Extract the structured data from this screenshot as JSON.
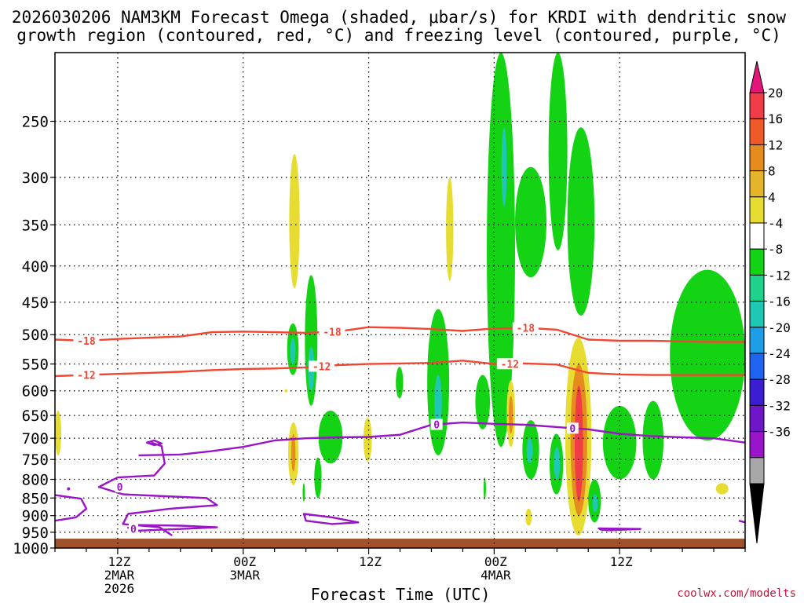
{
  "chart_data": {
    "type": "heatmap",
    "title_line1": "2026030206 NAM3KM Forecast Omega (shaded, μbar/s) for KRDI with dendritic snow",
    "title_line2": "growth region (contoured, red, °C) and freezing level (contoured, purple, °C)",
    "xlabel": "Forecast Time (UTC)",
    "credit": "coolwx.com/modelts",
    "x_unit": "hours from 2026-03-02 06Z",
    "xlim": [
      0,
      66
    ],
    "x_ticks": [
      {
        "x": 6,
        "label": "12Z",
        "label2": "2MAR",
        "label3": "2026"
      },
      {
        "x": 18,
        "label": "00Z",
        "label2": "3MAR",
        "label3": ""
      },
      {
        "x": 30,
        "label": "12Z",
        "label2": "",
        "label3": ""
      },
      {
        "x": 42,
        "label": "00Z",
        "label2": "4MAR",
        "label3": ""
      },
      {
        "x": 54,
        "label": "12Z",
        "label2": "",
        "label3": ""
      }
    ],
    "y_unit": "hPa",
    "ylim": [
      1000,
      200
    ],
    "y_ticks": [
      250,
      300,
      350,
      400,
      450,
      500,
      550,
      600,
      650,
      700,
      750,
      800,
      850,
      900,
      950,
      1000
    ],
    "y_grid": [
      250,
      300,
      350,
      400,
      450,
      500,
      550,
      600,
      650,
      700,
      750,
      800,
      850,
      900,
      950
    ],
    "colorbar": {
      "levels": [
        -36,
        -32,
        -28,
        -24,
        -20,
        -16,
        -12,
        -8,
        -4,
        4,
        8,
        12,
        16,
        20
      ],
      "colors": [
        "#a8a8a8",
        "#9a14c8",
        "#6e16c8",
        "#3c1ed2",
        "#1e64f0",
        "#1e9ee6",
        "#1ec8b4",
        "#1ed28c",
        "#14d214",
        "#ffffff",
        "#e6dc32",
        "#e6b428",
        "#e68c1e",
        "#f05a28",
        "#f03c46",
        "#e6147a"
      ],
      "under_color": "#000000",
      "over_color": "#e6147a"
    },
    "terrain": {
      "pressure": 970,
      "color": "#a0522d"
    },
    "omega_areas": [
      {
        "value": 4,
        "x_start": 0,
        "x_end": 0.6,
        "p_top": 640,
        "p_bottom": 740
      },
      {
        "value": 4,
        "x_start": 22.4,
        "x_end": 23.4,
        "p_top": 278,
        "p_bottom": 430
      },
      {
        "value": -4,
        "x_start": 22.2,
        "x_end": 23.3,
        "p_top": 482,
        "p_bottom": 570
      },
      {
        "value": -12,
        "x_start": 22.5,
        "x_end": 23.0,
        "p_top": 505,
        "p_bottom": 550
      },
      {
        "value": 4,
        "x_start": 22.3,
        "x_end": 23.3,
        "p_top": 665,
        "p_bottom": 815
      },
      {
        "value": 12,
        "x_start": 22.6,
        "x_end": 23.0,
        "p_top": 690,
        "p_bottom": 780
      },
      {
        "value": -4,
        "x_start": 23.9,
        "x_end": 25.1,
        "p_top": 412,
        "p_bottom": 630
      },
      {
        "value": -12,
        "x_start": 24.2,
        "x_end": 24.8,
        "p_top": 520,
        "p_bottom": 600
      },
      {
        "value": -4,
        "x_start": 23.7,
        "x_end": 23.9,
        "p_top": 810,
        "p_bottom": 860
      },
      {
        "value": -4,
        "x_start": 25.2,
        "x_end": 27.5,
        "p_top": 640,
        "p_bottom": 760
      },
      {
        "value": -4,
        "x_start": 24.8,
        "x_end": 25.5,
        "p_top": 745,
        "p_bottom": 850
      },
      {
        "value": 4,
        "x_start": 29.5,
        "x_end": 30.3,
        "p_top": 655,
        "p_bottom": 755
      },
      {
        "value": -4,
        "x_start": 32.6,
        "x_end": 33.3,
        "p_top": 555,
        "p_bottom": 615
      },
      {
        "value": 4,
        "x_start": 37.4,
        "x_end": 38.1,
        "p_top": 300,
        "p_bottom": 420
      },
      {
        "value": -4,
        "x_start": 35.6,
        "x_end": 37.7,
        "p_top": 460,
        "p_bottom": 740
      },
      {
        "value": -12,
        "x_start": 36.3,
        "x_end": 37.0,
        "p_top": 570,
        "p_bottom": 680
      },
      {
        "value": -4,
        "x_start": 40.2,
        "x_end": 41.6,
        "p_top": 570,
        "p_bottom": 680
      },
      {
        "value": -4,
        "x_start": 41.0,
        "x_end": 41.2,
        "p_top": 795,
        "p_bottom": 855
      },
      {
        "value": -4,
        "x_start": 41.3,
        "x_end": 44.0,
        "p_top": 200,
        "p_bottom": 720
      },
      {
        "value": -12,
        "x_start": 42.7,
        "x_end": 43.2,
        "p_top": 255,
        "p_bottom": 330
      },
      {
        "value": -4,
        "x_start": 44.0,
        "x_end": 47.0,
        "p_top": 290,
        "p_bottom": 415
      },
      {
        "value": -4,
        "x_start": 47.2,
        "x_end": 49.0,
        "p_top": 200,
        "p_bottom": 380
      },
      {
        "value": -4,
        "x_start": 49.0,
        "x_end": 51.6,
        "p_top": 255,
        "p_bottom": 470
      },
      {
        "value": 4,
        "x_start": 43.2,
        "x_end": 44.0,
        "p_top": 580,
        "p_bottom": 720
      },
      {
        "value": 12,
        "x_start": 43.4,
        "x_end": 43.8,
        "p_top": 610,
        "p_bottom": 690
      },
      {
        "value": -4,
        "x_start": 44.7,
        "x_end": 46.3,
        "p_top": 660,
        "p_bottom": 800
      },
      {
        "value": -12,
        "x_start": 45.1,
        "x_end": 45.7,
        "p_top": 700,
        "p_bottom": 760
      },
      {
        "value": -4,
        "x_start": 47.3,
        "x_end": 48.6,
        "p_top": 690,
        "p_bottom": 840
      },
      {
        "value": -12,
        "x_start": 47.7,
        "x_end": 48.3,
        "p_top": 720,
        "p_bottom": 800
      },
      {
        "value": 4,
        "x_start": 48.8,
        "x_end": 51.3,
        "p_top": 505,
        "p_bottom": 960
      },
      {
        "value": 12,
        "x_start": 49.3,
        "x_end": 50.9,
        "p_top": 550,
        "p_bottom": 900
      },
      {
        "value": 20,
        "x_start": 49.7,
        "x_end": 50.5,
        "p_top": 590,
        "p_bottom": 860
      },
      {
        "value": -4,
        "x_start": 51.0,
        "x_end": 52.2,
        "p_top": 800,
        "p_bottom": 920
      },
      {
        "value": -12,
        "x_start": 51.4,
        "x_end": 51.9,
        "p_top": 840,
        "p_bottom": 890
      },
      {
        "value": -4,
        "x_start": 52.4,
        "x_end": 55.6,
        "p_top": 630,
        "p_bottom": 800
      },
      {
        "value": -4,
        "x_start": 56.2,
        "x_end": 58.2,
        "p_top": 620,
        "p_bottom": 800
      },
      {
        "value": -4,
        "x_start": 58.8,
        "x_end": 66.0,
        "p_top": 405,
        "p_bottom": 705
      },
      {
        "value": 4,
        "x_start": 63.2,
        "x_end": 64.4,
        "p_top": 810,
        "p_bottom": 840
      },
      {
        "value": 4,
        "x_start": 45.0,
        "x_end": 45.6,
        "p_top": 880,
        "p_bottom": 930
      }
    ],
    "contours": [
      {
        "name": "-18",
        "color": "#f04632",
        "x": [
          0,
          3,
          6,
          9,
          12,
          15,
          18,
          21,
          24,
          27,
          30,
          33,
          36,
          39,
          42,
          45,
          48,
          51,
          54,
          57,
          60,
          63,
          66
        ],
        "y": [
          508,
          510,
          507,
          505,
          503,
          496,
          495,
          496,
          497,
          495,
          488,
          489,
          491,
          494,
          490,
          489,
          492,
          508,
          510,
          510,
          511,
          512,
          512
        ],
        "labels": [
          {
            "x": 3,
            "text": "-18"
          },
          {
            "x": 26.5,
            "text": "-18"
          },
          {
            "x": 45,
            "text": "-18"
          }
        ]
      },
      {
        "name": "-12",
        "color": "#f04632",
        "x": [
          0,
          3,
          6,
          9,
          12,
          15,
          18,
          21,
          24,
          27,
          30,
          33,
          36,
          39,
          42,
          45,
          48,
          51,
          54,
          57,
          60,
          63,
          66
        ],
        "y": [
          572,
          570,
          568,
          566,
          564,
          561,
          559,
          558,
          556,
          552,
          550,
          549,
          548,
          544,
          550,
          549,
          551,
          566,
          569,
          570,
          570,
          570,
          570
        ],
        "labels": [
          {
            "x": 3,
            "text": "-12"
          },
          {
            "x": 25.5,
            "text": "-12"
          },
          {
            "x": 43.5,
            "text": "-12"
          }
        ]
      },
      {
        "name": "0",
        "color": "#9a14c8",
        "x": [
          8,
          12,
          15,
          18,
          21,
          24,
          27,
          30,
          33,
          36,
          39,
          42,
          45,
          48,
          51,
          54,
          57,
          60,
          63,
          66
        ],
        "y": [
          740,
          738,
          730,
          720,
          705,
          700,
          698,
          697,
          692,
          670,
          665,
          668,
          670,
          675,
          680,
          690,
          695,
          698,
          700,
          710
        ],
        "labels": [
          {
            "x": 36.5,
            "text": "0"
          },
          {
            "x": 49.5,
            "text": "0"
          }
        ]
      }
    ],
    "freezing_loops": [
      {
        "points": [
          [
            9.2,
            710
          ],
          [
            10.2,
            718
          ],
          [
            10.5,
            760
          ],
          [
            9.5,
            790
          ],
          [
            6.0,
            795
          ],
          [
            4.2,
            820
          ],
          [
            6.5,
            840
          ],
          [
            10.5,
            845
          ],
          [
            14.5,
            850
          ],
          [
            15.5,
            870
          ],
          [
            11.0,
            880
          ],
          [
            7.0,
            895
          ],
          [
            6.5,
            925
          ],
          [
            10.0,
            935
          ],
          [
            11.2,
            960
          ]
        ],
        "closed": false
      },
      {
        "points": [
          [
            9.5,
            705
          ],
          [
            10.2,
            712
          ],
          [
            9.5,
            716
          ],
          [
            8.8,
            710
          ]
        ],
        "closed": true
      },
      {
        "points": [
          [
            0,
            842
          ],
          [
            2.5,
            852
          ],
          [
            3.0,
            880
          ],
          [
            2.0,
            905
          ],
          [
            0,
            915
          ]
        ],
        "closed": false
      },
      {
        "points": [
          [
            8.0,
            928
          ],
          [
            12.0,
            930
          ],
          [
            15.5,
            935
          ],
          [
            12.0,
            940
          ],
          [
            8.0,
            945
          ],
          [
            7.0,
            936
          ]
        ],
        "closed": true
      },
      {
        "points": [
          [
            23.8,
            895
          ],
          [
            26.5,
            905
          ],
          [
            29.0,
            920
          ],
          [
            26.5,
            925
          ],
          [
            24.0,
            915
          ]
        ],
        "closed": true
      },
      {
        "points": [
          [
            52.0,
            938
          ],
          [
            56.0,
            940
          ],
          [
            53.0,
            944
          ],
          [
            52.2,
            942
          ]
        ],
        "closed": true
      },
      {
        "points": [
          [
            65.4,
            915
          ],
          [
            66.0,
            920
          ]
        ],
        "closed": false
      }
    ],
    "freezing_labels": [
      {
        "x": 6.2,
        "p": 820,
        "text": "0"
      },
      {
        "x": 7.5,
        "p": 940,
        "text": "0"
      }
    ],
    "scatter_dots": [
      {
        "x": 1.3,
        "p": 825,
        "color": "#9a14c8"
      },
      {
        "x": 22.1,
        "p": 600,
        "color": "#e6dc32"
      }
    ]
  }
}
